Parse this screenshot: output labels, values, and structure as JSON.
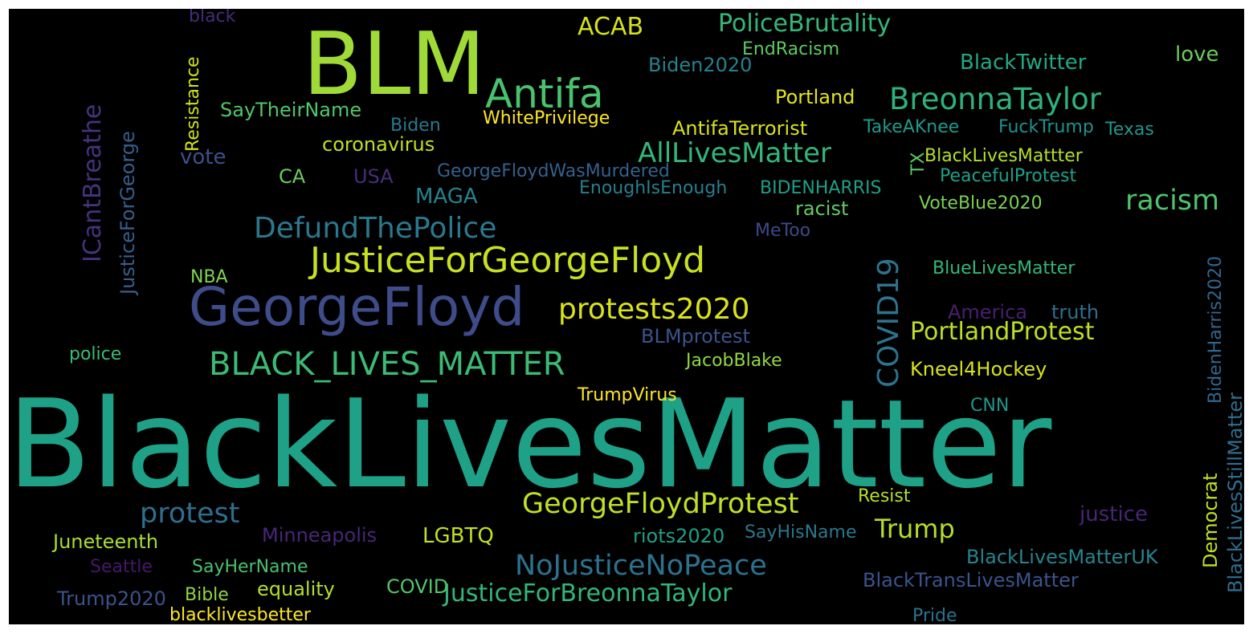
{
  "words": [
    {
      "text": "BlackLivesMatter",
      "color": "#1fa187"
    },
    {
      "text": "BLM",
      "color": "#a0da39"
    },
    {
      "text": "GeorgeFloyd",
      "color": "#3e4c8a"
    },
    {
      "text": "JusticeForGeorgeFloyd",
      "color": "#c8e020"
    },
    {
      "text": "Antifa",
      "color": "#4ac16d"
    },
    {
      "text": "BreonnaTaylor",
      "color": "#2db27d"
    },
    {
      "text": "AllLivesMatter",
      "color": "#32b67a"
    },
    {
      "text": "protests2020",
      "color": "#dae319"
    },
    {
      "text": "BLACK_LIVES_MATTER",
      "color": "#3bbb75"
    },
    {
      "text": "DefundThePolice",
      "color": "#2a788e"
    },
    {
      "text": "GeorgeFloydProtest",
      "color": "#c2df23"
    },
    {
      "text": "NoJusticeNoPeace",
      "color": "#2c728e"
    },
    {
      "text": "JusticeForBreonnaTaylor",
      "color": "#32b67a"
    },
    {
      "text": "protest",
      "color": "#2e6e8e"
    },
    {
      "text": "racism",
      "color": "#4ec36b"
    },
    {
      "text": "COVID19",
      "color": "#2c738e"
    },
    {
      "text": "PortlandProtest",
      "color": "#bddf26"
    },
    {
      "text": "Trump",
      "color": "#b5de2b"
    },
    {
      "text": "PoliceBrutality",
      "color": "#35b779"
    },
    {
      "text": "ACAB",
      "color": "#d5e21a"
    },
    {
      "text": "ICantBreathe",
      "color": "#46337e"
    },
    {
      "text": "JusticeForGeorge",
      "color": "#355f8d"
    },
    {
      "text": "Resistance",
      "color": "#d0e11c"
    },
    {
      "text": "BidenHarris2020",
      "color": "#31668e"
    },
    {
      "text": "BlackLivesStillMatter",
      "color": "#2e6e8e"
    },
    {
      "text": "Democrat",
      "color": "#c0df25"
    },
    {
      "text": "TX",
      "color": "#5ec962"
    },
    {
      "text": "black",
      "color": "#472c7a"
    },
    {
      "text": "SayTheirName",
      "color": "#52c569"
    },
    {
      "text": "Portland",
      "color": "#e5e419"
    },
    {
      "text": "Biden2020",
      "color": "#26828e"
    },
    {
      "text": "EndRacism",
      "color": "#5ec962"
    },
    {
      "text": "BlackTwitter",
      "color": "#22a785"
    },
    {
      "text": "love",
      "color": "#6ccd5a"
    },
    {
      "text": "WhitePrivilege",
      "color": "#fde725"
    },
    {
      "text": "Biden",
      "color": "#29798e"
    },
    {
      "text": "AntifaTerrorist",
      "color": "#d8e219"
    },
    {
      "text": "TakeAKnee",
      "color": "#1f9a8a"
    },
    {
      "text": "FuckTrump",
      "color": "#21918c"
    },
    {
      "text": "Texas",
      "color": "#1f968b"
    },
    {
      "text": "coronavirus",
      "color": "#c2df23"
    },
    {
      "text": "vote",
      "color": "#3b518b"
    },
    {
      "text": "BlackLivesMattter",
      "color": "#b5de2b"
    },
    {
      "text": "CA",
      "color": "#6ccd5a"
    },
    {
      "text": "USA",
      "color": "#472d7b"
    },
    {
      "text": "GeorgeFloydWasMurdered",
      "color": "#33628d"
    },
    {
      "text": "PeacefulProtest",
      "color": "#1fa088"
    },
    {
      "text": "MAGA",
      "color": "#25838e"
    },
    {
      "text": "EnoughIsEnough",
      "color": "#277f8e"
    },
    {
      "text": "BIDENHARRIS",
      "color": "#1f9e89"
    },
    {
      "text": "racist",
      "color": "#63cb5f"
    },
    {
      "text": "VoteBlue2020",
      "color": "#7ad151"
    },
    {
      "text": "MeToo",
      "color": "#3e4989"
    },
    {
      "text": "NBA",
      "color": "#7fd34e"
    },
    {
      "text": "BlueLivesMatter",
      "color": "#35b779"
    },
    {
      "text": "America",
      "color": "#481f70"
    },
    {
      "text": "truth",
      "color": "#2d708e"
    },
    {
      "text": "BLMprotest",
      "color": "#3a548c"
    },
    {
      "text": "police",
      "color": "#3bbb75"
    },
    {
      "text": "JacobBlake",
      "color": "#8fd744"
    },
    {
      "text": "Kneel4Hockey",
      "color": "#d8e219"
    },
    {
      "text": "TrumpVirus",
      "color": "#fde725"
    },
    {
      "text": "CNN",
      "color": "#1f968b"
    },
    {
      "text": "Resist",
      "color": "#b5de2b"
    },
    {
      "text": "justice",
      "color": "#482576"
    },
    {
      "text": "Juneteenth",
      "color": "#a8db34"
    },
    {
      "text": "Minneapolis",
      "color": "#482677"
    },
    {
      "text": "LGBTQ",
      "color": "#c2df23"
    },
    {
      "text": "riots2020",
      "color": "#1f9e89"
    },
    {
      "text": "SayHisName",
      "color": "#2a788e"
    },
    {
      "text": "Seattle",
      "color": "#481769"
    },
    {
      "text": "SayHerName",
      "color": "#4ac16d"
    },
    {
      "text": "BlackLivesMatterUK",
      "color": "#25848e"
    },
    {
      "text": "BlackTransLivesMatter",
      "color": "#3a548c"
    },
    {
      "text": "Trump2020",
      "color": "#3b528b"
    },
    {
      "text": "Bible",
      "color": "#8fd744"
    },
    {
      "text": "equality",
      "color": "#b5de2b"
    },
    {
      "text": "COVID",
      "color": "#52c569"
    },
    {
      "text": "blacklivesbetter",
      "color": "#fde725"
    },
    {
      "text": "Pride",
      "color": "#2c728e"
    }
  ]
}
